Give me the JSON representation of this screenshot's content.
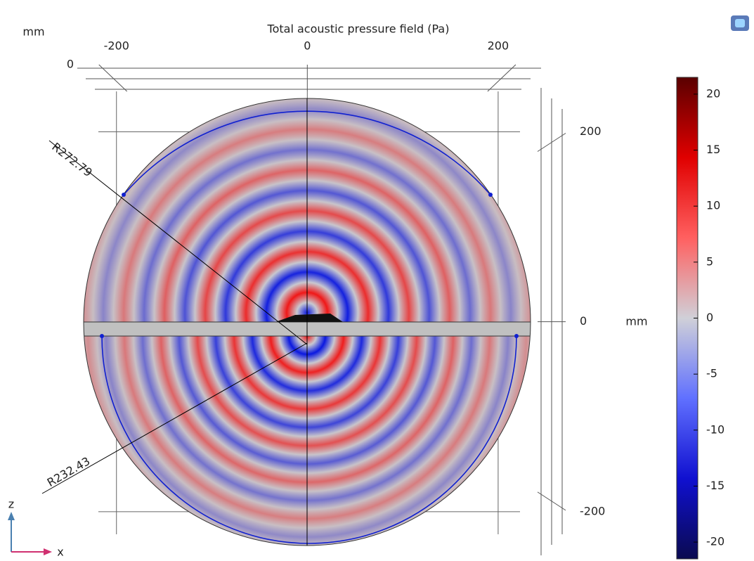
{
  "chart_data": {
    "type": "field",
    "title": "Total acoustic pressure field (Pa)",
    "x_unit": "mm",
    "y_unit": "mm",
    "ruler_label": "0",
    "xlim": [
      -230,
      245
    ],
    "xticks": [
      -200,
      0,
      200
    ],
    "ylim": [
      -246,
      267
    ],
    "yticks": [
      -200,
      0,
      200
    ],
    "grid": true,
    "annotations": [
      "R272.79",
      "R232.43"
    ],
    "axis_labels": {
      "vertical": "z",
      "horizontal": "x"
    },
    "colorbar": {
      "lim": [
        -21.5,
        21.5
      ],
      "ticks": [
        -20,
        -15,
        -10,
        -5,
        0,
        5,
        10,
        15,
        20
      ],
      "colors": [
        "#0a0a50",
        "#1010d0",
        "#6070ff",
        "#d0d0d8",
        "#ff6060",
        "#e00000",
        "#5a0000"
      ]
    }
  }
}
